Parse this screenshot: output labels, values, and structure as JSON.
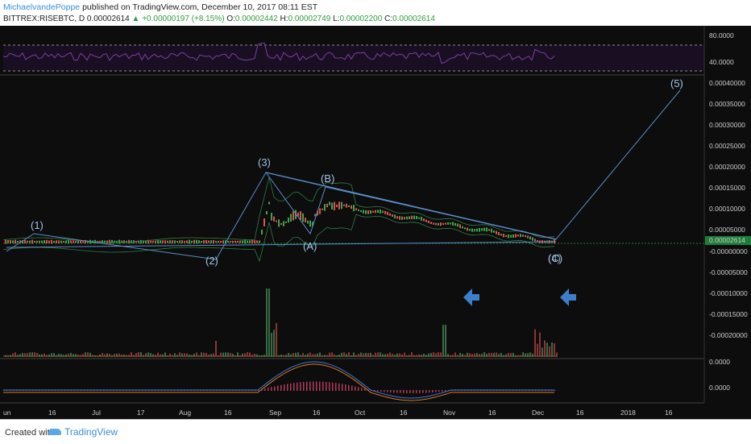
{
  "header": {
    "author": "MichaelvandePoppe",
    "published": "published on TradingView.com, December 10, 2017 08:11 EST",
    "symbol": "BITTREX:RISEBTC, D",
    "price": "0.00002614",
    "change": "+0.00000197 (+8.15%)",
    "o_label": "O:",
    "o_value": "0.00002442",
    "h_label": "H:",
    "h_value": "0.00002749",
    "l_label": "L:",
    "l_value": "0.00002200",
    "c_label": "C:",
    "c_value": "0.00002614"
  },
  "rsi_axis": [
    "80.0000",
    "40.0000"
  ],
  "price_axis": [
    "0.00040000",
    "0.00035000",
    "0.00030000",
    "0.00025000",
    "0.00020000",
    "0.00015000",
    "0.00010000",
    "0.00005000",
    "0.00002614",
    "-0.00000000",
    "-0.00005000",
    "-0.00010000",
    "-0.00015000",
    "-0.00020000"
  ],
  "macd_axis": [
    "0.0000",
    "0.0000"
  ],
  "x_axis": [
    "un",
    "16",
    "Jul",
    "17",
    "Aug",
    "16",
    "Sep",
    "16",
    "Oct",
    "16",
    "Nov",
    "16",
    "Dec",
    "16",
    "2018",
    "16"
  ],
  "wave_labels": [
    "(1)",
    "(2)",
    "(3)",
    "(A)",
    "(B)",
    "(C)",
    "(4)",
    "(5)"
  ],
  "colors": {
    "background": "#0d0d0d",
    "rsi_line": "#7a3fa0",
    "wave_line": "#5a8fc8",
    "arrow": "#3a7fc8",
    "candle_up": "#3fa34d",
    "candle_down": "#d9534f",
    "price_badge": "#1e7d3a"
  },
  "footer": {
    "created": "Created with",
    "brand": "TradingView"
  }
}
